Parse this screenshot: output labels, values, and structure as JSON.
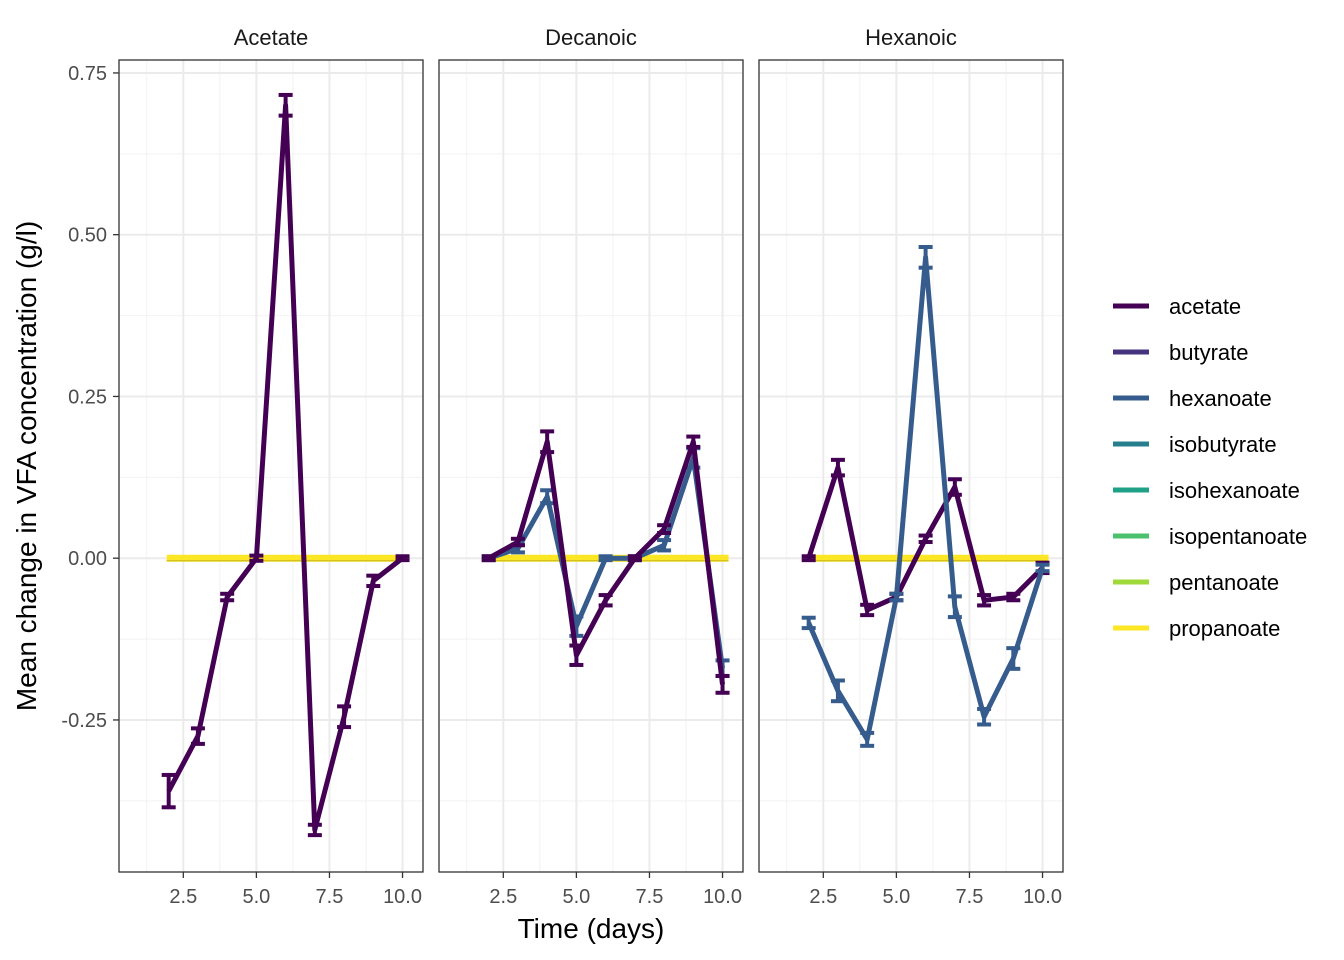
{
  "chart_data": {
    "type": "line",
    "title": "",
    "xlabel": "Time (days)",
    "ylabel": "Mean change in VFA concentration (g/l)",
    "xlim": [
      0.3,
      10.7
    ],
    "ylim": [
      -0.485,
      0.77
    ],
    "x_ticks": [
      2.5,
      5.0,
      7.5,
      10.0
    ],
    "x_tick_labels": [
      "2.5",
      "5.0",
      "7.5",
      "10.0"
    ],
    "y_ticks": [
      -0.25,
      0.0,
      0.25,
      0.5,
      0.75
    ],
    "y_tick_labels": [
      "-0.25",
      "0.00",
      "0.25",
      "0.50",
      "0.75"
    ],
    "grid": true,
    "legend_position": "right",
    "legend": [
      {
        "name": "acetate",
        "color": "#440154"
      },
      {
        "name": "butyrate",
        "color": "#46337E"
      },
      {
        "name": "hexanoate",
        "color": "#365C8D"
      },
      {
        "name": "isobutyrate",
        "color": "#277F8E"
      },
      {
        "name": "isohexanoate",
        "color": "#1FA187"
      },
      {
        "name": "isopentanoate",
        "color": "#4AC16D"
      },
      {
        "name": "pentanoate",
        "color": "#9FDA3A"
      },
      {
        "name": "propanoate",
        "color": "#FDE725"
      }
    ],
    "panels": [
      {
        "name": "Acetate",
        "series": [
          {
            "name": "propanoate",
            "x": [
              2,
              3,
              4,
              5,
              6,
              7,
              8,
              9,
              10
            ],
            "y": [
              0,
              0,
              0,
              0,
              0,
              0,
              0,
              0,
              0
            ],
            "err": [
              0,
              0,
              0,
              0,
              0,
              0,
              0,
              0,
              0
            ]
          },
          {
            "name": "acetate",
            "x": [
              2,
              3,
              4,
              5,
              6,
              7,
              8,
              9,
              10
            ],
            "y": [
              -0.36,
              -0.275,
              -0.06,
              0.0,
              0.7,
              -0.42,
              -0.245,
              -0.035,
              0.0
            ],
            "err": [
              0.025,
              0.012,
              0.005,
              0.004,
              0.016,
              0.008,
              0.016,
              0.008,
              0.003
            ]
          }
        ]
      },
      {
        "name": "Decanoic",
        "series": [
          {
            "name": "propanoate",
            "x": [
              2,
              3,
              4,
              5,
              6,
              7,
              8,
              9,
              10
            ],
            "y": [
              0,
              0,
              0,
              0,
              0,
              0,
              0,
              0,
              0
            ],
            "err": [
              0,
              0,
              0,
              0,
              0,
              0,
              0,
              0,
              0
            ]
          },
          {
            "name": "hexanoate",
            "x": [
              2,
              3,
              4,
              5,
              6,
              7,
              8,
              9,
              10
            ],
            "y": [
              0.0,
              0.015,
              0.095,
              -0.105,
              0.0,
              0.0,
              0.02,
              0.155,
              -0.17
            ],
            "err": [
              0.003,
              0.006,
              0.01,
              0.015,
              0.003,
              0.003,
              0.008,
              0.015,
              0.012
            ]
          },
          {
            "name": "acetate",
            "x": [
              2,
              3,
              4,
              5,
              6,
              7,
              8,
              9,
              10
            ],
            "y": [
              0.0,
              0.025,
              0.18,
              -0.15,
              -0.065,
              0.0,
              0.045,
              0.18,
              -0.195
            ],
            "err": [
              0.003,
              0.005,
              0.016,
              0.015,
              0.008,
              0.003,
              0.006,
              0.008,
              0.013
            ]
          }
        ]
      },
      {
        "name": "Hexanoic",
        "series": [
          {
            "name": "propanoate",
            "x": [
              2,
              3,
              4,
              5,
              6,
              7,
              8,
              9,
              10
            ],
            "y": [
              0,
              0,
              0,
              0,
              0,
              0,
              0,
              0,
              0
            ],
            "err": [
              0,
              0,
              0,
              0,
              0,
              0,
              0,
              0,
              0
            ]
          },
          {
            "name": "acetate",
            "x": [
              2,
              3,
              4,
              5,
              6,
              7,
              8,
              9,
              10
            ],
            "y": [
              0.0,
              0.14,
              -0.08,
              -0.06,
              0.03,
              0.11,
              -0.065,
              -0.06,
              -0.015
            ],
            "err": [
              0.003,
              0.012,
              0.008,
              0.005,
              0.005,
              0.012,
              0.008,
              0.005,
              0.008
            ]
          },
          {
            "name": "hexanoate",
            "x": [
              2,
              3,
              4,
              5,
              6,
              7,
              8,
              9,
              10
            ],
            "y": [
              -0.1,
              -0.205,
              -0.28,
              -0.06,
              0.465,
              -0.075,
              -0.245,
              -0.155,
              -0.015
            ],
            "err": [
              0.008,
              0.016,
              0.01,
              0.005,
              0.016,
              0.016,
              0.012,
              0.016,
              0.005
            ]
          }
        ]
      }
    ]
  }
}
